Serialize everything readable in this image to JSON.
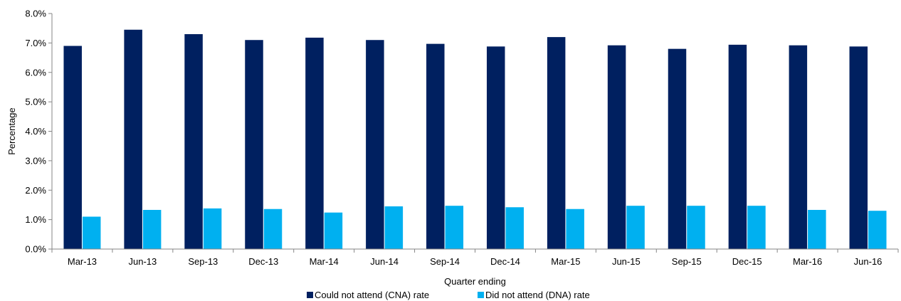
{
  "chart_data": {
    "type": "bar",
    "title": "",
    "xlabel": "Quarter ending",
    "ylabel": "Percentage",
    "ylim": [
      0,
      8
    ],
    "y_ticks": [
      "0.0%",
      "1.0%",
      "2.0%",
      "3.0%",
      "4.0%",
      "5.0%",
      "6.0%",
      "7.0%",
      "8.0%"
    ],
    "categories": [
      "Mar-13",
      "Jun-13",
      "Sep-13",
      "Dec-13",
      "Mar-14",
      "Jun-14",
      "Sep-14",
      "Dec-14",
      "Mar-15",
      "Jun-15",
      "Sep-15",
      "Dec-15",
      "Mar-16",
      "Jun-16"
    ],
    "grid": false,
    "legend_position": "bottom",
    "series": [
      {
        "name": "Could not attend (CNA) rate",
        "color": "#002060",
        "values": [
          6.9,
          7.45,
          7.3,
          7.1,
          7.18,
          7.1,
          6.97,
          6.88,
          7.2,
          6.92,
          6.8,
          6.94,
          6.92,
          6.88
        ]
      },
      {
        "name": "Did not attend (DNA) rate",
        "color": "#00B0F0",
        "values": [
          1.1,
          1.33,
          1.38,
          1.36,
          1.24,
          1.45,
          1.47,
          1.42,
          1.36,
          1.47,
          1.47,
          1.47,
          1.33,
          1.3
        ]
      }
    ]
  }
}
